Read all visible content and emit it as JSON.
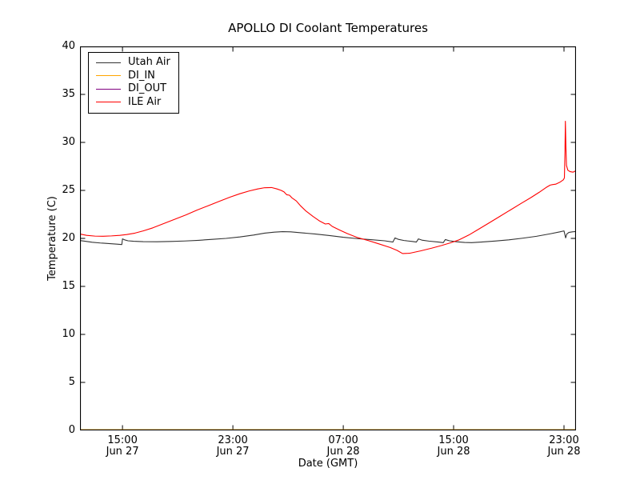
{
  "chart_data": {
    "type": "line",
    "title": "APOLLO DI Coolant Temperatures",
    "xlabel": "Date (GMT)",
    "ylabel": "Temperature (C)",
    "x_unit": "hours since Jun 27 00:00 GMT",
    "xlim": [
      11.92,
      47.87
    ],
    "ylim": [
      0,
      40
    ],
    "grid": false,
    "y_ticks": [
      0,
      5,
      10,
      15,
      20,
      25,
      30,
      35,
      40
    ],
    "x_ticks": [
      {
        "x": 15,
        "time": "15:00",
        "date": "Jun 27"
      },
      {
        "x": 23,
        "time": "23:00",
        "date": "Jun 27"
      },
      {
        "x": 31,
        "time": "07:00",
        "date": "Jun 28"
      },
      {
        "x": 39,
        "time": "15:00",
        "date": "Jun 28"
      },
      {
        "x": 47,
        "time": "23:00",
        "date": "Jun 28"
      }
    ],
    "legend": {
      "position": "upper left"
    },
    "series": [
      {
        "name": "Utah Air",
        "color": "#333333",
        "points": [
          [
            11.92,
            19.78
          ],
          [
            12.3,
            19.7
          ],
          [
            12.8,
            19.6
          ],
          [
            13.4,
            19.52
          ],
          [
            14.0,
            19.46
          ],
          [
            14.6,
            19.4
          ],
          [
            14.95,
            19.36
          ],
          [
            15.0,
            19.95
          ],
          [
            15.15,
            19.85
          ],
          [
            15.4,
            19.75
          ],
          [
            15.8,
            19.7
          ],
          [
            16.5,
            19.66
          ],
          [
            17.5,
            19.65
          ],
          [
            18.5,
            19.68
          ],
          [
            19.5,
            19.73
          ],
          [
            20.5,
            19.8
          ],
          [
            21.5,
            19.9
          ],
          [
            22.5,
            20.0
          ],
          [
            23.5,
            20.15
          ],
          [
            24.5,
            20.35
          ],
          [
            25.3,
            20.55
          ],
          [
            26.0,
            20.65
          ],
          [
            26.6,
            20.7
          ],
          [
            27.2,
            20.68
          ],
          [
            28.0,
            20.58
          ],
          [
            29.0,
            20.45
          ],
          [
            30.0,
            20.3
          ],
          [
            31.0,
            20.12
          ],
          [
            32.0,
            19.98
          ],
          [
            33.0,
            19.87
          ],
          [
            34.0,
            19.75
          ],
          [
            34.6,
            19.62
          ],
          [
            34.75,
            20.05
          ],
          [
            35.0,
            19.9
          ],
          [
            35.4,
            19.78
          ],
          [
            36.0,
            19.68
          ],
          [
            36.3,
            19.62
          ],
          [
            36.45,
            19.95
          ],
          [
            36.7,
            19.82
          ],
          [
            37.2,
            19.72
          ],
          [
            37.9,
            19.62
          ],
          [
            38.25,
            19.56
          ],
          [
            38.4,
            19.88
          ],
          [
            38.7,
            19.75
          ],
          [
            39.2,
            19.65
          ],
          [
            39.8,
            19.58
          ],
          [
            40.3,
            19.56
          ],
          [
            41.0,
            19.62
          ],
          [
            42.0,
            19.72
          ],
          [
            43.0,
            19.85
          ],
          [
            44.0,
            20.02
          ],
          [
            45.0,
            20.22
          ],
          [
            46.0,
            20.48
          ],
          [
            46.7,
            20.68
          ],
          [
            47.0,
            20.78
          ],
          [
            47.08,
            20.3
          ],
          [
            47.12,
            20.05
          ],
          [
            47.2,
            20.45
          ],
          [
            47.35,
            20.62
          ],
          [
            47.6,
            20.68
          ],
          [
            47.87,
            20.72
          ]
        ]
      },
      {
        "name": "DI_IN",
        "color": "#ffa500",
        "points": [
          [
            11.92,
            0
          ],
          [
            47.87,
            0
          ]
        ]
      },
      {
        "name": "DI_OUT",
        "color": "#800080",
        "points": [
          [
            11.92,
            0
          ],
          [
            47.87,
            0
          ]
        ]
      },
      {
        "name": "ILE Air",
        "color": "#ff0000",
        "points": [
          [
            11.92,
            20.45
          ],
          [
            12.4,
            20.32
          ],
          [
            13.0,
            20.24
          ],
          [
            13.6,
            20.22
          ],
          [
            14.2,
            20.26
          ],
          [
            14.8,
            20.32
          ],
          [
            15.3,
            20.4
          ],
          [
            15.9,
            20.55
          ],
          [
            16.5,
            20.78
          ],
          [
            17.2,
            21.1
          ],
          [
            18.0,
            21.55
          ],
          [
            18.8,
            22.0
          ],
          [
            19.6,
            22.45
          ],
          [
            20.4,
            22.95
          ],
          [
            21.2,
            23.4
          ],
          [
            22.0,
            23.85
          ],
          [
            22.8,
            24.3
          ],
          [
            23.5,
            24.65
          ],
          [
            24.2,
            24.95
          ],
          [
            24.8,
            25.15
          ],
          [
            25.3,
            25.28
          ],
          [
            25.8,
            25.3
          ],
          [
            26.2,
            25.15
          ],
          [
            26.5,
            25.0
          ],
          [
            26.7,
            24.85
          ],
          [
            26.9,
            24.55
          ],
          [
            27.1,
            24.5
          ],
          [
            27.3,
            24.2
          ],
          [
            27.6,
            23.9
          ],
          [
            27.9,
            23.4
          ],
          [
            28.3,
            22.85
          ],
          [
            28.8,
            22.3
          ],
          [
            29.3,
            21.8
          ],
          [
            29.7,
            21.5
          ],
          [
            29.95,
            21.55
          ],
          [
            30.2,
            21.25
          ],
          [
            30.7,
            20.9
          ],
          [
            31.3,
            20.5
          ],
          [
            32.0,
            20.1
          ],
          [
            32.8,
            19.78
          ],
          [
            33.6,
            19.42
          ],
          [
            34.4,
            19.05
          ],
          [
            34.9,
            18.75
          ],
          [
            35.3,
            18.42
          ],
          [
            35.8,
            18.45
          ],
          [
            36.6,
            18.7
          ],
          [
            37.4,
            18.98
          ],
          [
            38.1,
            19.25
          ],
          [
            38.8,
            19.55
          ],
          [
            39.4,
            19.85
          ],
          [
            40.1,
            20.35
          ],
          [
            40.8,
            20.95
          ],
          [
            41.5,
            21.55
          ],
          [
            42.3,
            22.25
          ],
          [
            43.1,
            22.95
          ],
          [
            43.9,
            23.65
          ],
          [
            44.6,
            24.25
          ],
          [
            45.2,
            24.8
          ],
          [
            45.7,
            25.3
          ],
          [
            46.0,
            25.55
          ],
          [
            46.15,
            25.6
          ],
          [
            46.4,
            25.65
          ],
          [
            46.7,
            25.85
          ],
          [
            46.95,
            26.1
          ],
          [
            47.03,
            26.3
          ],
          [
            47.07,
            29.0
          ],
          [
            47.1,
            32.2
          ],
          [
            47.14,
            29.5
          ],
          [
            47.18,
            27.6
          ],
          [
            47.28,
            27.1
          ],
          [
            47.45,
            26.95
          ],
          [
            47.65,
            26.9
          ],
          [
            47.87,
            27.05
          ]
        ]
      }
    ]
  }
}
